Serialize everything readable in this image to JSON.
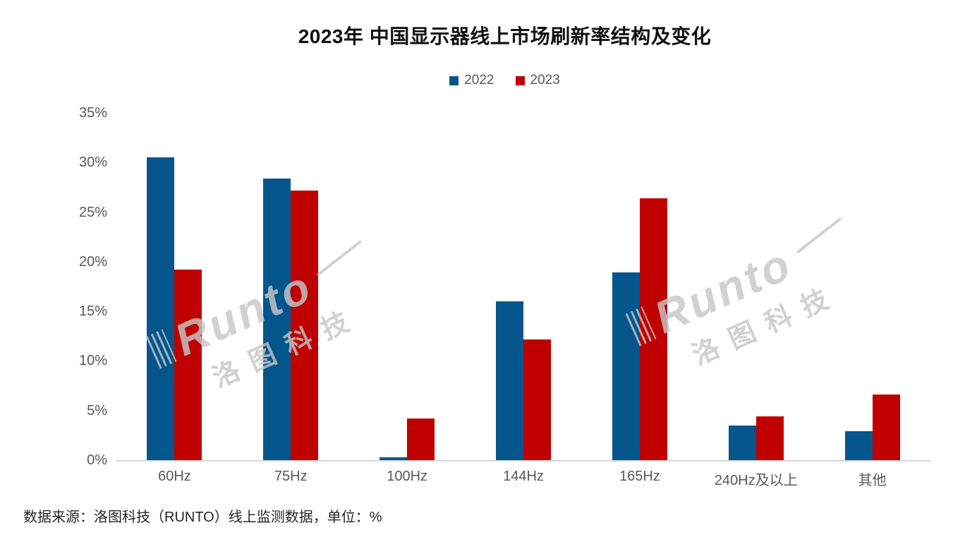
{
  "page": {
    "title": "2023年 中国显示器线上市场刷新率结构及变化",
    "source_note": "数据来源：洛图科技（RUNTO）线上监测数据，单位：%"
  },
  "chart_data": {
    "type": "bar",
    "title": "2023年 中国显示器线上市场刷新率结构及变化",
    "categories": [
      "60Hz",
      "75Hz",
      "100Hz",
      "144Hz",
      "165Hz",
      "240Hz及以上",
      "其他"
    ],
    "series": [
      {
        "name": "2022",
        "color": "#04568C",
        "values": [
          30.5,
          28.4,
          0.3,
          16.0,
          18.9,
          3.5,
          2.9
        ]
      },
      {
        "name": "2023",
        "color": "#C00000",
        "values": [
          19.2,
          27.2,
          4.2,
          12.2,
          26.4,
          4.4,
          6.6
        ]
      }
    ],
    "unit": "%",
    "xlabel": "",
    "ylabel": "",
    "ylim": [
      0,
      35
    ],
    "yticks": [
      35,
      30,
      25,
      20,
      15,
      10,
      5,
      0
    ],
    "ytick_suffix": "%",
    "grid": false,
    "legend_position": "top-center",
    "legend_entries": [
      "2022",
      "2023"
    ]
  },
  "watermark": {
    "brand": "Runto",
    "brand_cn": "洛图科技"
  },
  "colors": {
    "series_2022": "#04568C",
    "series_2023": "#C00000",
    "axis_line": "#D9D9D9",
    "tick_text": "#595959",
    "title_text": "#111111",
    "source_text": "#262626",
    "watermark": "#C7C7C7",
    "background": "#FFFFFF"
  }
}
